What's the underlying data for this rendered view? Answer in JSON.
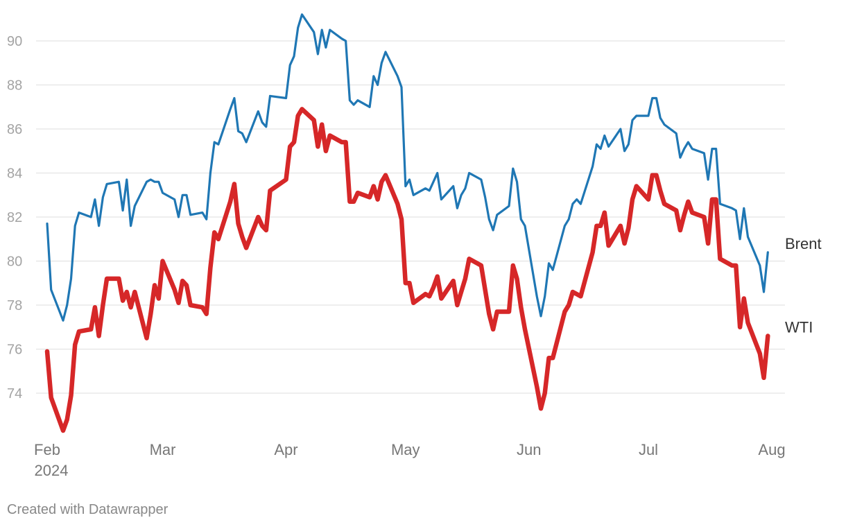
{
  "chart_data": {
    "type": "line",
    "title": "",
    "xlabel": "",
    "ylabel": "",
    "x_tick_labels": [
      "Feb",
      "Mar",
      "Apr",
      "May",
      "Jun",
      "Jul",
      "Aug"
    ],
    "x_tick_year": "2024",
    "y_ticks": [
      74,
      76,
      78,
      80,
      82,
      84,
      86,
      88,
      90
    ],
    "ylim": [
      72.2,
      91.5
    ],
    "x_domain": [
      "2024-02-01",
      "2024-08-01"
    ],
    "grid": true,
    "series": [
      {
        "name": "Brent",
        "color": "#1f77b4",
        "dates": [
          "2024-02-01",
          "2024-02-02",
          "2024-02-05",
          "2024-02-06",
          "2024-02-07",
          "2024-02-08",
          "2024-02-09",
          "2024-02-12",
          "2024-02-13",
          "2024-02-14",
          "2024-02-15",
          "2024-02-16",
          "2024-02-19",
          "2024-02-20",
          "2024-02-21",
          "2024-02-22",
          "2024-02-23",
          "2024-02-26",
          "2024-02-27",
          "2024-02-28",
          "2024-02-29",
          "2024-03-01",
          "2024-03-04",
          "2024-03-05",
          "2024-03-06",
          "2024-03-07",
          "2024-03-08",
          "2024-03-11",
          "2024-03-12",
          "2024-03-13",
          "2024-03-14",
          "2024-03-15",
          "2024-03-18",
          "2024-03-19",
          "2024-03-20",
          "2024-03-21",
          "2024-03-22",
          "2024-03-25",
          "2024-03-26",
          "2024-03-27",
          "2024-03-28",
          "2024-04-01",
          "2024-04-02",
          "2024-04-03",
          "2024-04-04",
          "2024-04-05",
          "2024-04-08",
          "2024-04-09",
          "2024-04-10",
          "2024-04-11",
          "2024-04-12",
          "2024-04-15",
          "2024-04-16",
          "2024-04-17",
          "2024-04-18",
          "2024-04-19",
          "2024-04-22",
          "2024-04-23",
          "2024-04-24",
          "2024-04-25",
          "2024-04-26",
          "2024-04-29",
          "2024-04-30",
          "2024-05-01",
          "2024-05-02",
          "2024-05-03",
          "2024-05-06",
          "2024-05-07",
          "2024-05-08",
          "2024-05-09",
          "2024-05-10",
          "2024-05-13",
          "2024-05-14",
          "2024-05-15",
          "2024-05-16",
          "2024-05-17",
          "2024-05-20",
          "2024-05-21",
          "2024-05-22",
          "2024-05-23",
          "2024-05-24",
          "2024-05-27",
          "2024-05-28",
          "2024-05-29",
          "2024-05-30",
          "2024-05-31",
          "2024-06-03",
          "2024-06-04",
          "2024-06-05",
          "2024-06-06",
          "2024-06-07",
          "2024-06-10",
          "2024-06-11",
          "2024-06-12",
          "2024-06-13",
          "2024-06-14",
          "2024-06-17",
          "2024-06-18",
          "2024-06-19",
          "2024-06-20",
          "2024-06-21",
          "2024-06-24",
          "2024-06-25",
          "2024-06-26",
          "2024-06-27",
          "2024-06-28",
          "2024-07-01",
          "2024-07-02",
          "2024-07-03",
          "2024-07-04",
          "2024-07-05",
          "2024-07-08",
          "2024-07-09",
          "2024-07-10",
          "2024-07-11",
          "2024-07-12",
          "2024-07-15",
          "2024-07-16",
          "2024-07-17",
          "2024-07-18",
          "2024-07-19",
          "2024-07-22",
          "2024-07-23",
          "2024-07-24",
          "2024-07-25",
          "2024-07-26",
          "2024-07-29",
          "2024-07-30",
          "2024-07-31"
        ],
        "values": [
          81.7,
          78.7,
          77.3,
          78.0,
          79.2,
          81.6,
          82.2,
          82.0,
          82.8,
          81.6,
          82.9,
          83.5,
          83.6,
          82.3,
          83.7,
          81.6,
          82.5,
          83.6,
          83.7,
          83.6,
          83.6,
          83.1,
          82.8,
          82.0,
          83.0,
          83.0,
          82.1,
          82.2,
          81.9,
          84.0,
          85.4,
          85.3,
          86.9,
          87.4,
          85.9,
          85.8,
          85.4,
          86.8,
          86.3,
          86.1,
          87.5,
          87.4,
          88.9,
          89.3,
          90.6,
          91.2,
          90.4,
          89.4,
          90.5,
          89.7,
          90.5,
          90.1,
          90.0,
          87.3,
          87.1,
          87.3,
          87.0,
          88.4,
          88.0,
          89.0,
          89.5,
          88.4,
          87.9,
          83.4,
          83.7,
          83.0,
          83.3,
          83.2,
          83.6,
          84.0,
          82.8,
          83.4,
          82.4,
          83.0,
          83.3,
          84.0,
          83.7,
          82.9,
          81.9,
          81.4,
          82.1,
          82.5,
          84.2,
          83.6,
          81.9,
          81.6,
          78.4,
          77.5,
          78.4,
          79.9,
          79.6,
          81.6,
          81.9,
          82.6,
          82.8,
          82.6,
          84.3,
          85.3,
          85.1,
          85.7,
          85.2,
          86.0,
          85.0,
          85.3,
          86.4,
          86.6,
          86.6,
          87.4,
          87.4,
          86.5,
          86.2,
          85.8,
          84.7,
          85.1,
          85.4,
          85.1,
          84.9,
          83.7,
          85.1,
          85.1,
          82.6,
          82.4,
          82.3,
          81.0,
          82.4,
          81.1,
          79.8,
          78.6,
          80.4
        ]
      },
      {
        "name": "WTI",
        "color": "#d62728",
        "dates": [
          "2024-02-01",
          "2024-02-02",
          "2024-02-05",
          "2024-02-06",
          "2024-02-07",
          "2024-02-08",
          "2024-02-09",
          "2024-02-12",
          "2024-02-13",
          "2024-02-14",
          "2024-02-15",
          "2024-02-16",
          "2024-02-19",
          "2024-02-20",
          "2024-02-21",
          "2024-02-22",
          "2024-02-23",
          "2024-02-26",
          "2024-02-27",
          "2024-02-28",
          "2024-02-29",
          "2024-03-01",
          "2024-03-04",
          "2024-03-05",
          "2024-03-06",
          "2024-03-07",
          "2024-03-08",
          "2024-03-11",
          "2024-03-12",
          "2024-03-13",
          "2024-03-14",
          "2024-03-15",
          "2024-03-18",
          "2024-03-19",
          "2024-03-20",
          "2024-03-21",
          "2024-03-22",
          "2024-03-25",
          "2024-03-26",
          "2024-03-27",
          "2024-03-28",
          "2024-04-01",
          "2024-04-02",
          "2024-04-03",
          "2024-04-04",
          "2024-04-05",
          "2024-04-08",
          "2024-04-09",
          "2024-04-10",
          "2024-04-11",
          "2024-04-12",
          "2024-04-15",
          "2024-04-16",
          "2024-04-17",
          "2024-04-18",
          "2024-04-19",
          "2024-04-22",
          "2024-04-23",
          "2024-04-24",
          "2024-04-25",
          "2024-04-26",
          "2024-04-29",
          "2024-04-30",
          "2024-05-01",
          "2024-05-02",
          "2024-05-03",
          "2024-05-06",
          "2024-05-07",
          "2024-05-08",
          "2024-05-09",
          "2024-05-10",
          "2024-05-13",
          "2024-05-14",
          "2024-05-15",
          "2024-05-16",
          "2024-05-17",
          "2024-05-20",
          "2024-05-21",
          "2024-05-22",
          "2024-05-23",
          "2024-05-24",
          "2024-05-27",
          "2024-05-28",
          "2024-05-29",
          "2024-05-30",
          "2024-05-31",
          "2024-06-03",
          "2024-06-04",
          "2024-06-05",
          "2024-06-06",
          "2024-06-07",
          "2024-06-10",
          "2024-06-11",
          "2024-06-12",
          "2024-06-13",
          "2024-06-14",
          "2024-06-17",
          "2024-06-18",
          "2024-06-19",
          "2024-06-20",
          "2024-06-21",
          "2024-06-24",
          "2024-06-25",
          "2024-06-26",
          "2024-06-27",
          "2024-06-28",
          "2024-07-01",
          "2024-07-02",
          "2024-07-03",
          "2024-07-04",
          "2024-07-05",
          "2024-07-08",
          "2024-07-09",
          "2024-07-10",
          "2024-07-11",
          "2024-07-12",
          "2024-07-15",
          "2024-07-16",
          "2024-07-17",
          "2024-07-18",
          "2024-07-19",
          "2024-07-22",
          "2024-07-23",
          "2024-07-24",
          "2024-07-25",
          "2024-07-26",
          "2024-07-29",
          "2024-07-30",
          "2024-07-31"
        ],
        "values": [
          75.9,
          73.8,
          72.3,
          72.8,
          73.9,
          76.2,
          76.8,
          76.9,
          77.9,
          76.6,
          78.0,
          79.2,
          79.2,
          78.2,
          78.6,
          77.9,
          78.6,
          76.5,
          77.6,
          78.9,
          78.3,
          80.0,
          78.7,
          78.1,
          79.1,
          78.9,
          78.0,
          77.9,
          77.6,
          79.7,
          81.3,
          81.0,
          82.7,
          83.5,
          81.7,
          81.1,
          80.6,
          82.0,
          81.6,
          81.4,
          83.2,
          83.7,
          85.2,
          85.4,
          86.6,
          86.9,
          86.4,
          85.2,
          86.2,
          85.0,
          85.7,
          85.4,
          85.4,
          82.7,
          82.7,
          83.1,
          82.9,
          83.4,
          82.8,
          83.6,
          83.9,
          82.6,
          81.9,
          79.0,
          79.0,
          78.1,
          78.5,
          78.4,
          78.8,
          79.3,
          78.3,
          79.1,
          78.0,
          78.6,
          79.2,
          80.1,
          79.8,
          78.7,
          77.6,
          76.9,
          77.7,
          77.7,
          79.8,
          79.2,
          77.9,
          76.9,
          74.3,
          73.3,
          74.0,
          75.6,
          75.6,
          77.7,
          78.0,
          78.6,
          78.5,
          78.4,
          80.4,
          81.6,
          81.6,
          82.2,
          80.7,
          81.6,
          80.8,
          81.5,
          82.8,
          83.4,
          82.8,
          83.9,
          83.9,
          83.2,
          82.6,
          82.3,
          81.4,
          82.1,
          82.7,
          82.2,
          82.0,
          80.8,
          82.8,
          82.8,
          80.1,
          79.8,
          79.8,
          77.0,
          78.3,
          77.2,
          75.8,
          74.7,
          76.6
        ]
      }
    ],
    "source": "Created with Datawrapper"
  }
}
